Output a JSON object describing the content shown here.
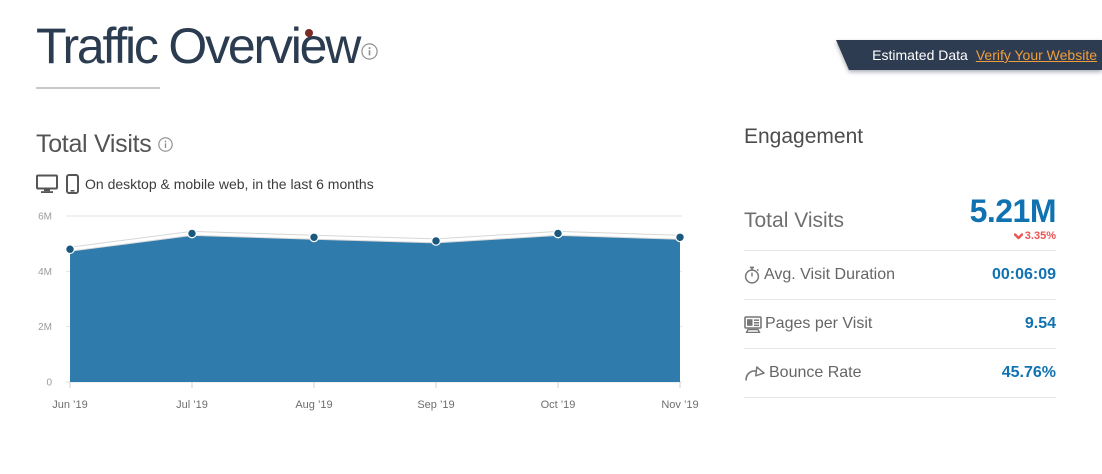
{
  "header": {
    "title": "Traffic Overview"
  },
  "badge": {
    "label": "Estimated Data",
    "link_label": "Verify Your Website"
  },
  "visits_section": {
    "title": "Total Visits",
    "subtitle": "On desktop & mobile web, in the last 6 months"
  },
  "chart_data": {
    "type": "area",
    "title": "Total Visits",
    "x": [
      "Jun ’19",
      "Jul ’19",
      "Aug ’19",
      "Sep ’19",
      "Oct ’19",
      "Nov ’19"
    ],
    "values_millions": [
      4.8,
      5.37,
      5.23,
      5.1,
      5.37,
      5.23
    ],
    "ylim_millions": [
      0,
      6
    ],
    "yticks_millions": [
      0,
      2,
      4,
      6
    ],
    "ytick_labels": [
      "0",
      "2M",
      "4M",
      "6M"
    ],
    "grid": true,
    "legend": false,
    "colors": {
      "area": "#2f7bac",
      "dot": "#1a587e",
      "line": "#ffffff"
    }
  },
  "engagement": {
    "title": "Engagement",
    "total_visits": {
      "label": "Total Visits",
      "value": "5.21M",
      "change": "3.35%",
      "direction": "down"
    },
    "metrics": [
      {
        "icon": "stopwatch-icon",
        "label": "Avg. Visit Duration",
        "value": "00:06:09"
      },
      {
        "icon": "pages-icon",
        "label": "Pages per Visit",
        "value": "9.54"
      },
      {
        "icon": "bounce-arrow-icon",
        "label": "Bounce Rate",
        "value": "45.76%"
      }
    ]
  },
  "colors": {
    "title_navy": "#2b3c50",
    "value_blue": "#1172b2",
    "change_red": "#ed5351",
    "badge_bg": "#2e3c51",
    "badge_link_orange": "#f09d3c",
    "area_blue": "#2f7bac"
  }
}
